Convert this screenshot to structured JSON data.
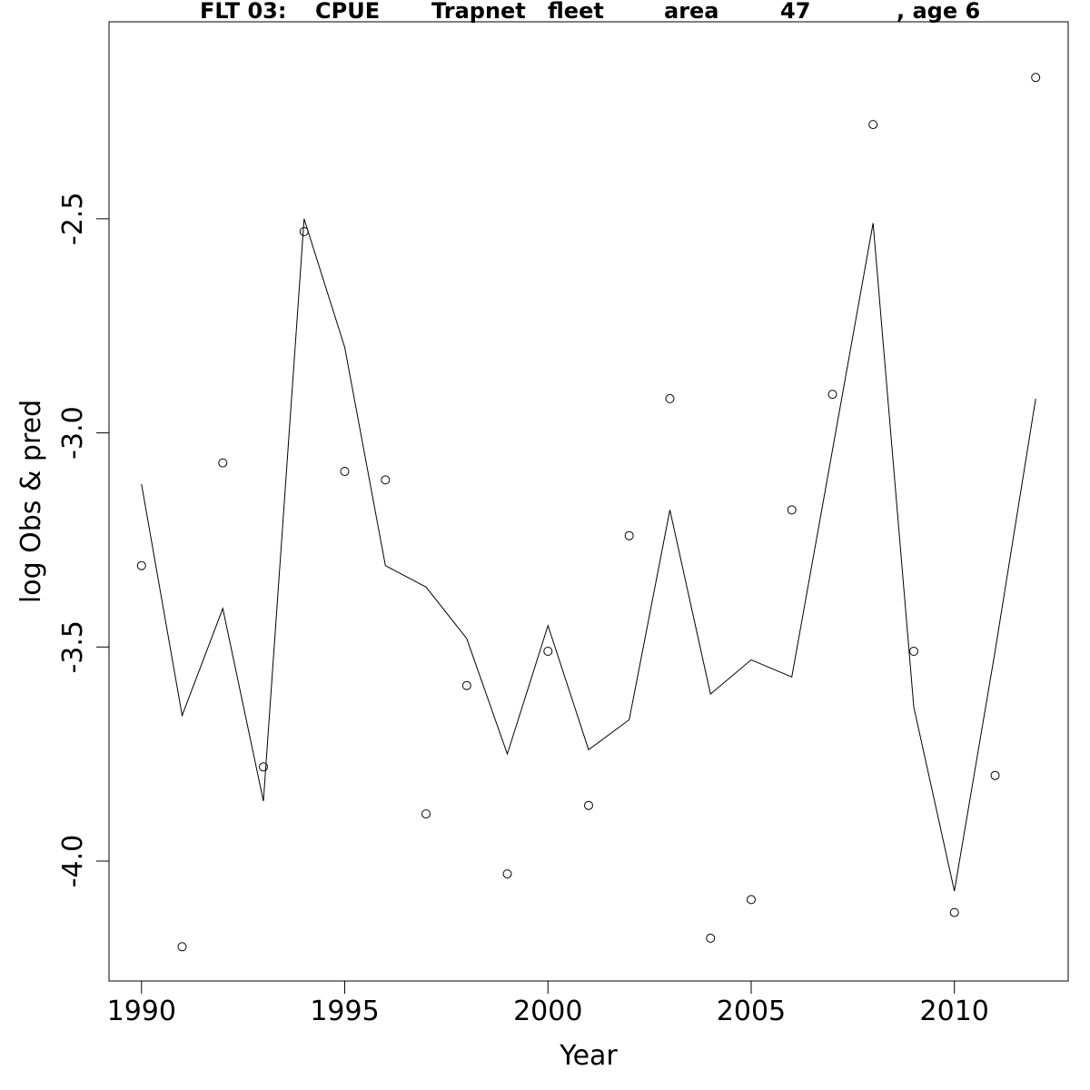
{
  "chart_data": {
    "type": "line",
    "title_parts": [
      "FLT 03:",
      "CPUE",
      "Trapnet",
      "fleet",
      "area",
      "47",
      ", age 6"
    ],
    "xlabel": "Year",
    "ylabel": "log Obs & pred",
    "xlim": [
      1989.2,
      2012.8
    ],
    "ylim": [
      -4.28,
      -2.04
    ],
    "xticks": [
      1990,
      1995,
      2000,
      2005,
      2010
    ],
    "yticks": [
      -4.0,
      -3.5,
      -3.0,
      -2.5
    ],
    "ytick_labels": [
      "-4.0",
      "-3.5",
      "-3.0",
      "-2.5"
    ],
    "grid": false,
    "series": [
      {
        "kind": "observed-points",
        "x": [
          1990,
          1991,
          1992,
          1993,
          1994,
          1995,
          1996,
          1997,
          1998,
          1999,
          2000,
          2001,
          2002,
          2003,
          2004,
          2005,
          2006,
          2007,
          2008,
          2009,
          2010,
          2011,
          2012
        ],
        "y": [
          -3.31,
          -4.2,
          -3.07,
          -3.78,
          -2.53,
          -3.09,
          -3.11,
          -3.89,
          -3.59,
          -4.03,
          -3.51,
          -3.87,
          -3.24,
          -2.92,
          -4.18,
          -4.09,
          -3.18,
          -2.91,
          -2.28,
          -3.51,
          -4.12,
          -3.8,
          -2.17
        ]
      },
      {
        "kind": "predicted-line",
        "x": [
          1990,
          1991,
          1992,
          1993,
          1994,
          1995,
          1996,
          1997,
          1998,
          1999,
          2000,
          2001,
          2002,
          2003,
          2004,
          2005,
          2006,
          2007,
          2008,
          2009,
          2010,
          2011,
          2012
        ],
        "y": [
          -3.12,
          -3.66,
          -3.41,
          -3.86,
          -2.5,
          -2.8,
          -3.31,
          -3.36,
          -3.48,
          -3.75,
          -3.45,
          -3.74,
          -3.67,
          -3.18,
          -3.61,
          -3.53,
          -3.57,
          -3.04,
          -2.51,
          -3.64,
          -4.07,
          -3.51,
          -2.92
        ]
      }
    ]
  }
}
